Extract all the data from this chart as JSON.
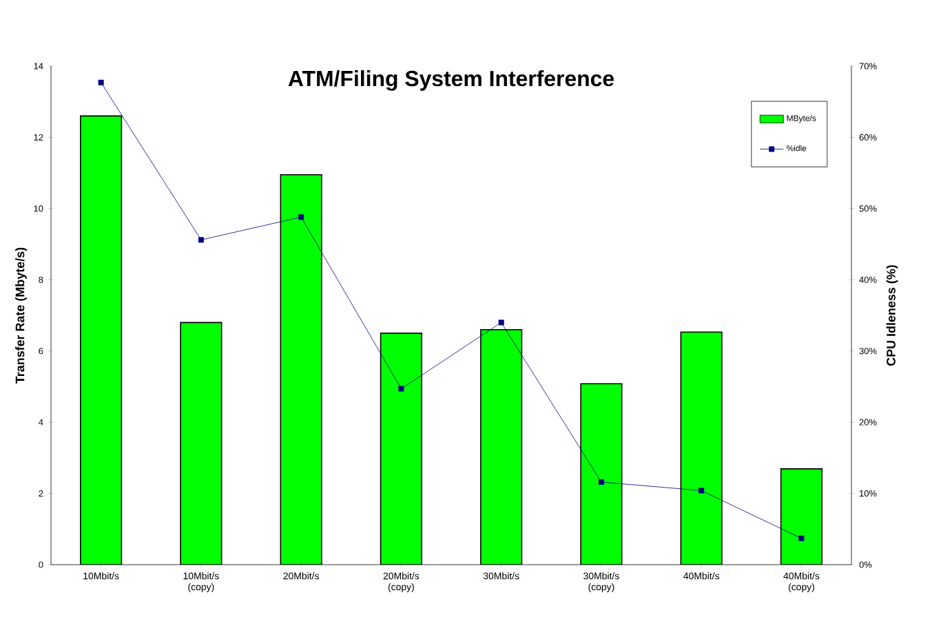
{
  "chart_data": {
    "type": "bar",
    "title": "ATM/Filing System Interference",
    "ylabel": "Transfer Rate (Mbyte/s)",
    "y2label": "CPU Idleness (%)",
    "categories": [
      "10Mbit/s",
      "10Mbit/s (copy)",
      "20Mbit/s",
      "20Mbit/s (copy)",
      "30Mbit/s",
      "30Mbit/s (copy)",
      "40Mbit/s",
      "40Mbit/s (copy)"
    ],
    "series": [
      {
        "name": "MByte/s",
        "color": "#00ff00",
        "values": [
          12.6,
          6.8,
          10.95,
          6.5,
          6.6,
          5.08,
          6.53,
          2.69
        ]
      },
      {
        "name": "%idle",
        "type": "line",
        "axis": "y2",
        "color": "#000080",
        "marker": "square",
        "values": [
          67.7,
          45.6,
          48.8,
          24.7,
          34.0,
          11.6,
          10.4,
          3.7
        ]
      }
    ],
    "ylim": [
      0,
      14
    ],
    "yticks": [
      0,
      2,
      4,
      6,
      8,
      10,
      12,
      14
    ],
    "y2lim": [
      0,
      70
    ],
    "y2ticks": [
      {
        "value": 0,
        "label": "0%"
      },
      {
        "value": 10,
        "label": "10%"
      },
      {
        "value": 20,
        "label": "20%"
      },
      {
        "value": 30,
        "label": "30%"
      },
      {
        "value": 40,
        "label": "40%"
      },
      {
        "value": 50,
        "label": "50%"
      },
      {
        "value": 60,
        "label": "60%"
      },
      {
        "value": 70,
        "label": "70%"
      }
    ],
    "legend": "top right",
    "grid": false
  }
}
